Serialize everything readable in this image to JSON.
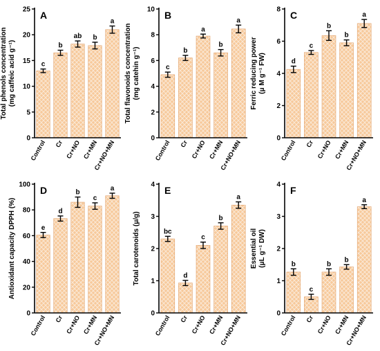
{
  "styling": {
    "bar_fill": "#f7c99a",
    "bar_pattern": "#fbe9d6",
    "bar_edge": "#e0a06a",
    "axis_color": "#000000"
  },
  "chart_data": [
    {
      "panel": "A",
      "type": "bar",
      "categories": [
        "Control",
        "Cr",
        "Cr+NO",
        "Cr+MN",
        "Cr+NO+MN"
      ],
      "values": [
        13.0,
        16.5,
        18.2,
        17.9,
        21.0
      ],
      "errors": [
        0.35,
        0.5,
        0.6,
        0.65,
        0.7
      ],
      "letters": [
        "c",
        "b",
        "ab",
        "b",
        "a"
      ],
      "ylabel": [
        "Total phenols concentration",
        "(mg caffeic acid g⁻¹)"
      ],
      "ylim": [
        0,
        25
      ],
      "yticks": [
        0,
        5,
        10,
        15,
        20,
        25
      ]
    },
    {
      "panel": "B",
      "type": "bar",
      "categories": [
        "Control",
        "Cr",
        "Cr+NO",
        "Cr+MN",
        "Cr+NO+MN"
      ],
      "values": [
        4.9,
        6.2,
        7.9,
        6.6,
        8.45
      ],
      "errors": [
        0.2,
        0.2,
        0.15,
        0.25,
        0.3
      ],
      "letters": [
        "c",
        "b",
        "a",
        "b",
        "a"
      ],
      "ylabel": [
        "Total flavonoids concentration",
        "(mg catehin g⁻¹)"
      ],
      "ylim": [
        0,
        10
      ],
      "yticks": [
        0,
        2,
        4,
        6,
        8,
        10
      ]
    },
    {
      "panel": "C",
      "type": "bar",
      "categories": [
        "Control",
        "Cr",
        "Cr+NO",
        "Cr+MN",
        "Cr+NO+MN"
      ],
      "values": [
        4.25,
        5.3,
        6.35,
        5.9,
        7.1
      ],
      "errors": [
        0.2,
        0.12,
        0.3,
        0.18,
        0.25
      ],
      "letters": [
        "d",
        "c",
        "b",
        "b",
        "a"
      ],
      "ylabel": [
        "Ferric reducing power",
        "(μ M g⁻¹ FW)"
      ],
      "ylim": [
        0,
        8
      ],
      "yticks": [
        0,
        2,
        4,
        6,
        8
      ]
    },
    {
      "panel": "D",
      "type": "bar",
      "categories": [
        "Control",
        "Cr",
        "Cr+NO",
        "Cr+MN",
        "Cr+NO+MN"
      ],
      "values": [
        60.5,
        73.3,
        86.0,
        83.0,
        91.0
      ],
      "errors": [
        2.0,
        2.0,
        4.0,
        2.5,
        2.0
      ],
      "letters": [
        "e",
        "d",
        "b",
        "c",
        "a"
      ],
      "ylabel": [
        "Antioxidant capacity DPPH (%)"
      ],
      "ylim": [
        0,
        100
      ],
      "yticks": [
        0,
        20,
        40,
        60,
        80,
        100
      ]
    },
    {
      "panel": "E",
      "type": "bar",
      "categories": [
        "Control",
        "Cr",
        "Cr+NO",
        "Cr+MN",
        "Cr+NO+MN"
      ],
      "values": [
        2.3,
        0.93,
        2.1,
        2.7,
        3.35
      ],
      "errors": [
        0.08,
        0.08,
        0.1,
        0.1,
        0.1
      ],
      "letters": [
        "bc",
        "d",
        "c",
        "b",
        "a"
      ],
      "ylabel": [
        "Total carotenoids (μ/g)"
      ],
      "ylim": [
        0,
        4
      ],
      "yticks": [
        0,
        1,
        2,
        3,
        4
      ]
    },
    {
      "panel": "F",
      "type": "bar",
      "categories": [
        "Control",
        "Cr",
        "Cr+NO",
        "Cr+MN",
        "Cr+NO+MN"
      ],
      "values": [
        1.27,
        0.5,
        1.27,
        1.43,
        3.3
      ],
      "errors": [
        0.1,
        0.08,
        0.1,
        0.07,
        0.06
      ],
      "letters": [
        "b",
        "c",
        "b",
        "b",
        "a"
      ],
      "ylabel": [
        "Essential oil",
        "(μL g⁻¹ DW)"
      ],
      "ylim": [
        0,
        4
      ],
      "yticks": [
        0,
        1,
        2,
        3,
        4
      ]
    }
  ]
}
